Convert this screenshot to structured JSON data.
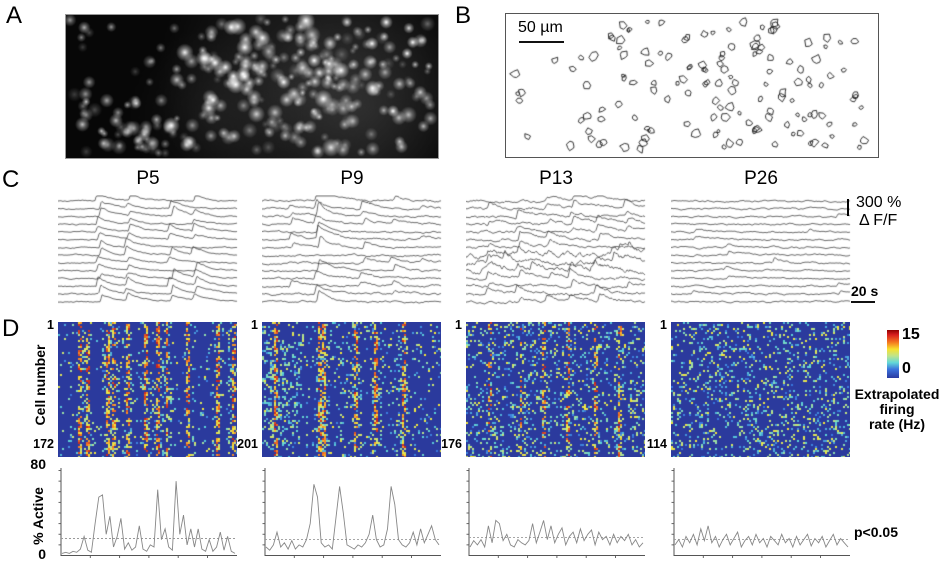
{
  "figure": {
    "panel_a": {
      "label": "A"
    },
    "panel_b": {
      "label": "B",
      "scale_bar": "50 µm"
    },
    "panel_c": {
      "label": "C",
      "columns": [
        {
          "title": "P5"
        },
        {
          "title": "P9"
        },
        {
          "title": "P13"
        },
        {
          "title": "P26"
        }
      ],
      "amplitude_scale": "300 %",
      "amplitude_unit": "Δ F/F",
      "time_scale": "20 s"
    },
    "panel_d": {
      "label": "D",
      "y_axis_label": "Cell number",
      "columns": [
        {
          "first_cell": "1",
          "last_cell": "172"
        },
        {
          "first_cell": "1",
          "last_cell": "201"
        },
        {
          "first_cell": "1",
          "last_cell": "176"
        },
        {
          "first_cell": "1",
          "last_cell": "114"
        }
      ],
      "colorbar": {
        "max": "15",
        "min": "0",
        "label_lines": [
          "Extrapolated",
          "firing",
          "rate (Hz)"
        ]
      },
      "active_plot": {
        "y_axis_label": "% Active",
        "y_max": "80",
        "y_min": "0",
        "significance": "p<0.05"
      }
    }
  },
  "colors": {
    "heatmap_background": "#2B3A9D",
    "trace_line": "#3a3a3a",
    "active_line": "#878787",
    "threshold_line": "#999999"
  },
  "chart_data": [
    {
      "id": "percent_active_P5",
      "type": "line",
      "ylabel": "% Active",
      "ylim": [
        0,
        80
      ],
      "threshold_p005": 16,
      "values": [
        2,
        3,
        2,
        4,
        3,
        6,
        18,
        5,
        3,
        30,
        55,
        57,
        20,
        37,
        8,
        18,
        35,
        6,
        12,
        5,
        8,
        28,
        6,
        4,
        10,
        8,
        62,
        15,
        25,
        8,
        5,
        70,
        20,
        38,
        10,
        25,
        8,
        25,
        6,
        4,
        15,
        4,
        8,
        22,
        5,
        18,
        4,
        2
      ]
    },
    {
      "id": "percent_active_P9",
      "type": "line",
      "ylabel": "% Active",
      "ylim": [
        0,
        80
      ],
      "threshold_p005": 15,
      "values": [
        8,
        5,
        10,
        22,
        8,
        12,
        6,
        14,
        6,
        10,
        8,
        15,
        30,
        67,
        55,
        12,
        8,
        10,
        6,
        35,
        65,
        40,
        10,
        8,
        6,
        10,
        8,
        12,
        20,
        38,
        15,
        8,
        10,
        25,
        65,
        48,
        15,
        10,
        8,
        12,
        22,
        10,
        25,
        12,
        20,
        28,
        15,
        10
      ]
    },
    {
      "id": "percent_active_P13",
      "type": "line",
      "ylabel": "% Active",
      "ylim": [
        0,
        80
      ],
      "threshold_p005": 17,
      "values": [
        8,
        14,
        10,
        15,
        8,
        28,
        12,
        33,
        30,
        14,
        20,
        10,
        8,
        15,
        12,
        10,
        14,
        30,
        12,
        22,
        33,
        15,
        28,
        12,
        20,
        26,
        10,
        18,
        22,
        12,
        25,
        14,
        20,
        24,
        10,
        22,
        15,
        18,
        10,
        20,
        12,
        18,
        14,
        20,
        10,
        15,
        8,
        12
      ]
    },
    {
      "id": "percent_active_P26",
      "type": "line",
      "ylabel": "% Active",
      "ylim": [
        0,
        80
      ],
      "threshold_p005": 15,
      "values": [
        10,
        15,
        8,
        18,
        12,
        20,
        10,
        25,
        14,
        28,
        12,
        18,
        8,
        15,
        20,
        10,
        16,
        22,
        8,
        14,
        18,
        10,
        20,
        12,
        16,
        8,
        18,
        14,
        10,
        20,
        12,
        16,
        8,
        18,
        10,
        15,
        20,
        9,
        16,
        12,
        18,
        8,
        14,
        20,
        10,
        16,
        12,
        8
      ]
    },
    {
      "id": "raster_P5",
      "type": "heatmap",
      "rows": 172,
      "firing_rate_range_hz": [
        0,
        15
      ],
      "sync_event_times_frac": [
        0.12,
        0.16,
        0.27,
        0.31,
        0.38,
        0.48,
        0.55,
        0.6,
        0.72,
        0.88,
        0.97
      ],
      "participation": 0.5,
      "background_density": 0.05,
      "cyan_patch": false
    },
    {
      "id": "raster_P9",
      "type": "heatmap",
      "rows": 201,
      "firing_rate_range_hz": [
        0,
        15
      ],
      "sync_event_times_frac": [
        0.07,
        0.32,
        0.34,
        0.52,
        0.63,
        0.78
      ],
      "participation": 0.5,
      "background_density": 0.1,
      "cyan_patch": true
    },
    {
      "id": "raster_P13",
      "type": "heatmap",
      "rows": 176,
      "firing_rate_range_hz": [
        0,
        15
      ],
      "sync_event_times_frac": [
        0.13,
        0.3,
        0.43,
        0.56,
        0.72,
        0.85
      ],
      "participation": 0.3,
      "background_density": 0.16,
      "cyan_patch": false
    },
    {
      "id": "raster_P26",
      "type": "heatmap",
      "rows": 114,
      "firing_rate_range_hz": [
        0,
        15
      ],
      "sync_event_times_frac": [],
      "participation": 0,
      "background_density": 0.17,
      "cyan_patch": false
    },
    {
      "id": "traces_P5",
      "type": "line",
      "n_traces": 14,
      "noise": 0.55,
      "wild_traces": [],
      "events": [
        {
          "x": 0.22,
          "amp": 8,
          "p": 0.95
        },
        {
          "x": 0.38,
          "amp": 7,
          "p": 0.9
        },
        {
          "x": 0.62,
          "amp": 8,
          "p": 0.9
        },
        {
          "x": 0.75,
          "amp": 7,
          "p": 0.85
        }
      ]
    },
    {
      "id": "traces_P9",
      "type": "line",
      "n_traces": 14,
      "noise": 0.8,
      "wild_traces": [],
      "events": [
        {
          "x": 0.3,
          "amp": 11,
          "p": 0.85
        },
        {
          "x": 0.15,
          "amp": 5,
          "p": 0.5
        },
        {
          "x": 0.55,
          "amp": 6,
          "p": 0.55
        },
        {
          "x": 0.72,
          "amp": 5,
          "p": 0.4
        },
        {
          "x": 0.88,
          "amp": 4,
          "p": 0.3
        }
      ]
    },
    {
      "id": "traces_P13",
      "type": "line",
      "n_traces": 14,
      "noise": 1.1,
      "wild_traces": [
        7,
        8,
        9
      ],
      "events": [
        {
          "x": 0.12,
          "amp": 6,
          "p": 0.5
        },
        {
          "x": 0.28,
          "amp": 7,
          "p": 0.55
        },
        {
          "x": 0.45,
          "amp": 6,
          "p": 0.5
        },
        {
          "x": 0.58,
          "amp": 7,
          "p": 0.5
        },
        {
          "x": 0.72,
          "amp": 6,
          "p": 0.5
        },
        {
          "x": 0.88,
          "amp": 6,
          "p": 0.5
        }
      ]
    },
    {
      "id": "traces_P26",
      "type": "line",
      "n_traces": 14,
      "noise": 0.7,
      "wild_traces": [],
      "events": [
        {
          "x": 0.12,
          "amp": 3,
          "p": 0.2
        },
        {
          "x": 0.3,
          "amp": 4,
          "p": 0.25
        },
        {
          "x": 0.55,
          "amp": 5,
          "p": 0.2
        },
        {
          "x": 0.75,
          "amp": 4,
          "p": 0.2
        },
        {
          "x": 0.92,
          "amp": 3,
          "p": 0.15
        }
      ]
    }
  ]
}
